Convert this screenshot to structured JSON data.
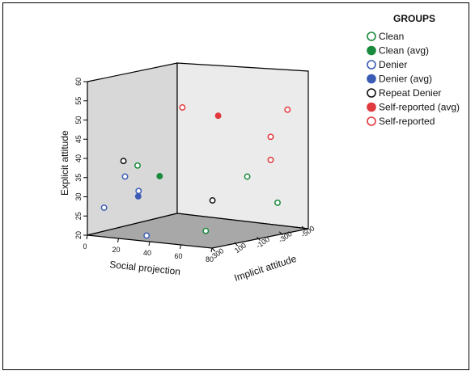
{
  "chart_data": {
    "type": "scatter",
    "title": "",
    "axes": {
      "y": {
        "label": "Explicit attitude",
        "ticks": [
          "20",
          "25",
          "30",
          "35",
          "40",
          "45",
          "50",
          "55",
          "60"
        ],
        "range": [
          20,
          60
        ]
      },
      "x": {
        "label": "Social projection",
        "ticks": [
          "0",
          "20",
          "40",
          "60",
          "80"
        ],
        "range": [
          0,
          80
        ]
      },
      "z": {
        "label": "Implicit attitude",
        "ticks": [
          "300",
          "100",
          "-100",
          "-300",
          "-500"
        ],
        "range": [
          300,
          -500
        ]
      }
    },
    "legend": {
      "title": "GROUPS",
      "position": "right",
      "items": [
        {
          "label": "Clean",
          "color": "#1a8a3c",
          "filled": false
        },
        {
          "label": "Clean (avg)",
          "color": "#1a8a3c",
          "filled": true
        },
        {
          "label": "Denier",
          "color": "#3b5bb5",
          "filled": false
        },
        {
          "label": "Denier (avg)",
          "color": "#3b5bb5",
          "filled": true
        },
        {
          "label": "Repeat Denier",
          "color": "#111111",
          "filled": false
        },
        {
          "label": "Self-reported (avg)",
          "color": "#e0393e",
          "filled": true
        },
        {
          "label": "Self-reported",
          "color": "#e0393e",
          "filled": false
        }
      ]
    },
    "series": [
      {
        "name": "Clean",
        "points": [
          {
            "x": 25,
            "y": 38.5,
            "z": 200
          },
          {
            "x": 63,
            "y": 34,
            "z": -250
          },
          {
            "x": 68,
            "y": 26,
            "z": -450
          },
          {
            "x": 63,
            "y": 22.5,
            "z": 120
          }
        ]
      },
      {
        "name": "Clean (avg)",
        "points": [
          {
            "x": 37,
            "y": 36,
            "z": 170
          }
        ]
      },
      {
        "name": "Denier",
        "points": [
          {
            "x": 22,
            "y": 36,
            "z": 270
          },
          {
            "x": 30,
            "y": 32.5,
            "z": 260
          },
          {
            "x": 10,
            "y": 27.5,
            "z": 290
          },
          {
            "x": 38,
            "y": 21.5,
            "z": 300
          }
        ]
      },
      {
        "name": "Denier (avg)",
        "points": [
          {
            "x": 29,
            "y": 31,
            "z": 250
          }
        ]
      },
      {
        "name": "Repeat Denier",
        "points": [
          {
            "x": 21,
            "y": 40,
            "z": 270
          },
          {
            "x": 63,
            "y": 30,
            "z": 60
          }
        ]
      },
      {
        "name": "Self-reported (avg)",
        "points": [
          {
            "x": 58,
            "y": 51,
            "z": -60
          }
        ]
      },
      {
        "name": "Self-reported",
        "points": [
          {
            "x": 48,
            "y": 54,
            "z": 120
          },
          {
            "x": 78,
            "y": 51,
            "z": -400
          },
          {
            "x": 78,
            "y": 45,
            "z": -250
          },
          {
            "x": 78,
            "y": 39,
            "z": -250
          }
        ]
      }
    ]
  }
}
